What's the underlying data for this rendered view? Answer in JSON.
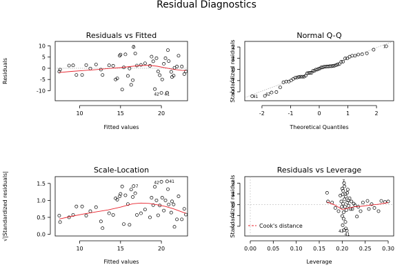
{
  "figure": {
    "title": "Residual Diagnostics"
  },
  "chart_data": [
    {
      "id": "rvf",
      "type": "scatter",
      "title": "Residuals vs Fitted",
      "xlabel": "Fitted values",
      "ylabel": "Residuals",
      "xlim": [
        7,
        23.2
      ],
      "ylim": [
        -14.5,
        12
      ],
      "xticks": [
        10,
        15,
        20
      ],
      "yticks": [
        -10,
        -5,
        0,
        5,
        10
      ],
      "ref_line": 0,
      "points": [
        [
          7.5,
          -1.5
        ],
        [
          7.6,
          -0.6
        ],
        [
          8.7,
          1.2
        ],
        [
          9.2,
          1.3
        ],
        [
          9.6,
          -3.0
        ],
        [
          10.3,
          -3.0
        ],
        [
          10.8,
          1.4
        ],
        [
          11.3,
          -0.1
        ],
        [
          12.0,
          1.7
        ],
        [
          12.6,
          -0.6
        ],
        [
          12.8,
          -3.0
        ],
        [
          13.6,
          1.3
        ],
        [
          14.1,
          1.1
        ],
        [
          14.4,
          -5.0
        ],
        [
          14.6,
          -4.5
        ],
        [
          14.9,
          5.6
        ],
        [
          15.0,
          6.1
        ],
        [
          15.2,
          -9.5
        ],
        [
          15.4,
          0.4
        ],
        [
          15.6,
          6.2
        ],
        [
          15.9,
          -3.4
        ],
        [
          16.1,
          -0.1
        ],
        [
          16.3,
          -7.4
        ],
        [
          16.5,
          -5.3
        ],
        [
          16.6,
          9.5
        ],
        [
          16.8,
          6.6
        ],
        [
          17.0,
          1.2
        ],
        [
          17.5,
          1.5
        ],
        [
          18.0,
          2.2
        ],
        [
          18.6,
          1.1
        ],
        [
          18.8,
          5.2
        ],
        [
          19.0,
          3.1
        ],
        [
          19.2,
          -9.3
        ],
        [
          19.4,
          4.5
        ],
        [
          19.6,
          -1.4
        ],
        [
          19.8,
          -3.1
        ],
        [
          20.0,
          -11.0
        ],
        [
          20.1,
          -5.0
        ],
        [
          20.3,
          2.0
        ],
        [
          20.5,
          4.5
        ],
        [
          20.7,
          -10.9
        ],
        [
          20.8,
          8.1
        ],
        [
          20.9,
          3.2
        ],
        [
          21.2,
          -1.6
        ],
        [
          21.3,
          -3.9
        ],
        [
          21.5,
          -3.3
        ],
        [
          21.6,
          0.2
        ],
        [
          21.9,
          0.8
        ],
        [
          22.1,
          5.6
        ],
        [
          22.5,
          0.8
        ],
        [
          22.8,
          -2.6
        ],
        [
          23.0,
          -1.4
        ]
      ],
      "smooth": [
        [
          7.5,
          -1.9
        ],
        [
          9,
          -1.4
        ],
        [
          10.5,
          -1.0
        ],
        [
          12,
          -0.6
        ],
        [
          13.5,
          -0.1
        ],
        [
          15,
          0.3
        ],
        [
          16.5,
          0.9
        ],
        [
          17.5,
          1.2
        ],
        [
          18.5,
          1.3
        ],
        [
          19.5,
          0.9
        ],
        [
          20.5,
          0.2
        ],
        [
          21.5,
          -0.5
        ],
        [
          22.5,
          -0.9
        ],
        [
          23,
          -1.0
        ]
      ],
      "labels": [
        {
          "text": "7",
          "x": 16.6,
          "y": 9.5
        },
        {
          "text": "42",
          "x": 19.6,
          "y": -11.3
        },
        {
          "text": "41",
          "x": 20.7,
          "y": -11.3
        }
      ]
    },
    {
      "id": "qq",
      "type": "scatter",
      "title": "Normal Q-Q",
      "xlabel": "Theoretical Quantiles",
      "ylabel": "Standardized residuals",
      "xlim": [
        -2.6,
        2.6
      ],
      "ylim": [
        -2.8,
        2.5
      ],
      "xticks": [
        -2,
        -1,
        0,
        1,
        2
      ],
      "yticks": [
        -2,
        -1,
        0,
        1,
        2
      ],
      "ref_line": {
        "intercept": 0,
        "slope": 0.97
      },
      "labels": [
        {
          "text": "41",
          "x": -2.39,
          "y": -2.42
        },
        {
          "text": "42",
          "x": -1.96,
          "y": -2.2
        },
        {
          "text": "7",
          "x": 2.39,
          "y": 2.0
        }
      ]
    },
    {
      "id": "sl",
      "type": "scatter",
      "title": "Scale-Location",
      "xlabel": "Fitted values",
      "ylabel": "√|Standardized residuals|",
      "xlim": [
        7,
        23.2
      ],
      "ylim": [
        -0.05,
        1.7
      ],
      "xticks": [
        10,
        15,
        20
      ],
      "yticks": [
        0.0,
        0.5,
        1.0,
        1.5
      ],
      "points": [
        [
          7.5,
          0.55
        ],
        [
          7.6,
          0.36
        ],
        [
          8.7,
          0.5
        ],
        [
          9.2,
          0.57
        ],
        [
          9.6,
          0.82
        ],
        [
          10.3,
          0.82
        ],
        [
          10.8,
          0.55
        ],
        [
          11.3,
          0.68
        ],
        [
          12.0,
          0.8
        ],
        [
          12.6,
          0.38
        ],
        [
          12.8,
          0.18
        ],
        [
          13.6,
          0.62
        ],
        [
          14.1,
          0.57
        ],
        [
          14.4,
          1.06
        ],
        [
          14.6,
          1.02
        ],
        [
          14.9,
          1.12
        ],
        [
          15.0,
          1.19
        ],
        [
          15.2,
          1.41
        ],
        [
          15.4,
          0.3
        ],
        [
          15.6,
          1.15
        ],
        [
          15.9,
          0.89
        ],
        [
          16.1,
          0.28
        ],
        [
          16.3,
          1.32
        ],
        [
          16.5,
          1.1
        ],
        [
          16.6,
          1.42
        ],
        [
          16.8,
          1.21
        ],
        [
          17.0,
          0.57
        ],
        [
          17.5,
          0.62
        ],
        [
          18.0,
          0.73
        ],
        [
          18.6,
          0.5
        ],
        [
          18.8,
          1.08
        ],
        [
          19.0,
          0.86
        ],
        [
          19.2,
          1.4
        ],
        [
          19.4,
          1.0
        ],
        [
          19.6,
          0.56
        ],
        [
          19.8,
          0.85
        ],
        [
          20.0,
          1.55
        ],
        [
          20.1,
          1.08
        ],
        [
          20.3,
          0.7
        ],
        [
          20.5,
          1.0
        ],
        [
          20.7,
          1.56
        ],
        [
          20.8,
          1.33
        ],
        [
          20.9,
          0.88
        ],
        [
          21.2,
          0.64
        ],
        [
          21.3,
          0.97
        ],
        [
          21.5,
          0.88
        ],
        [
          21.6,
          0.22
        ],
        [
          21.9,
          0.44
        ],
        [
          22.1,
          1.12
        ],
        [
          22.5,
          0.44
        ],
        [
          22.8,
          0.75
        ],
        [
          23.0,
          0.58
        ]
      ],
      "smooth": [
        [
          7.5,
          0.45
        ],
        [
          9,
          0.53
        ],
        [
          10.5,
          0.6
        ],
        [
          12,
          0.66
        ],
        [
          13.5,
          0.72
        ],
        [
          15,
          0.8
        ],
        [
          16.5,
          0.9
        ],
        [
          17.5,
          0.92
        ],
        [
          18.5,
          0.91
        ],
        [
          19.5,
          0.87
        ],
        [
          20.5,
          0.82
        ],
        [
          21.5,
          0.75
        ],
        [
          22.5,
          0.66
        ],
        [
          23,
          0.62
        ]
      ],
      "labels": [
        {
          "text": "7",
          "x": 16.6,
          "y": 1.42
        },
        {
          "text": "42",
          "x": 19.6,
          "y": 1.55
        },
        {
          "text": "41",
          "x": 20.7,
          "y": 1.56
        }
      ]
    },
    {
      "id": "rvl",
      "type": "scatter",
      "title": "Residuals vs Leverage",
      "xlabel": "Leverage",
      "ylabel": "Standardized residuals",
      "xlim": [
        -0.012,
        0.312
      ],
      "ylim": [
        -2.9,
        2.6
      ],
      "xticks": [
        0.0,
        0.05,
        0.1,
        0.15,
        0.2,
        0.25,
        0.3
      ],
      "xtick_labels": [
        "0.00",
        "0.05",
        "0.10",
        "0.15",
        "0.20",
        "0.25",
        "0.30"
      ],
      "yticks": [
        -2,
        -1,
        0,
        1,
        2
      ],
      "legend": {
        "label": "Cook's distance",
        "position": "bottom-left"
      },
      "points": [
        [
          0.167,
          1.1
        ],
        [
          0.169,
          0.3
        ],
        [
          0.178,
          0.2
        ],
        [
          0.185,
          -0.3
        ],
        [
          0.192,
          -0.6
        ],
        [
          0.196,
          0.85
        ],
        [
          0.198,
          0.3
        ],
        [
          0.199,
          -0.2
        ],
        [
          0.2,
          1.5
        ],
        [
          0.2,
          -1.05
        ],
        [
          0.201,
          0.95
        ],
        [
          0.201,
          -1.9
        ],
        [
          0.202,
          0.1
        ],
        [
          0.202,
          1.3
        ],
        [
          0.203,
          -1.3
        ],
        [
          0.203,
          -0.7
        ],
        [
          0.204,
          2.0
        ],
        [
          0.204,
          -2.35
        ],
        [
          0.205,
          1.7
        ],
        [
          0.205,
          0.5
        ],
        [
          0.206,
          -0.2
        ],
        [
          0.207,
          1.0
        ],
        [
          0.207,
          -1.6
        ],
        [
          0.208,
          -2.2
        ],
        [
          0.208,
          0.75
        ],
        [
          0.209,
          -0.5
        ],
        [
          0.21,
          -2.4
        ],
        [
          0.211,
          0.2
        ],
        [
          0.211,
          1.1
        ],
        [
          0.212,
          1.4
        ],
        [
          0.213,
          0.4
        ],
        [
          0.214,
          -0.1
        ],
        [
          0.216,
          0.6
        ],
        [
          0.218,
          -0.4
        ],
        [
          0.22,
          0.3
        ],
        [
          0.222,
          -0.4
        ],
        [
          0.225,
          0.1
        ],
        [
          0.228,
          -0.05
        ],
        [
          0.232,
          -1.1
        ],
        [
          0.235,
          -0.2
        ],
        [
          0.24,
          -0.6
        ],
        [
          0.245,
          0.2
        ],
        [
          0.255,
          0.35
        ],
        [
          0.258,
          -0.4
        ],
        [
          0.264,
          0.05
        ],
        [
          0.27,
          -0.3
        ],
        [
          0.279,
          -0.6
        ],
        [
          0.285,
          0.35
        ],
        [
          0.293,
          0.25
        ],
        [
          0.3,
          0.3
        ]
      ],
      "smooth": [
        [
          0.167,
          0.25
        ],
        [
          0.185,
          -0.05
        ],
        [
          0.2,
          -0.45
        ],
        [
          0.21,
          -0.35
        ],
        [
          0.225,
          -0.2
        ],
        [
          0.24,
          -0.15
        ],
        [
          0.26,
          -0.05
        ],
        [
          0.28,
          0.05
        ],
        [
          0.3,
          0.2
        ]
      ],
      "labels": [
        {
          "text": "7",
          "x": 0.203,
          "y": 2.2
        },
        {
          "text": "42",
          "x": 0.204,
          "y": -2.4
        },
        {
          "text": "41",
          "x": 0.211,
          "y": -2.55
        }
      ]
    }
  ]
}
